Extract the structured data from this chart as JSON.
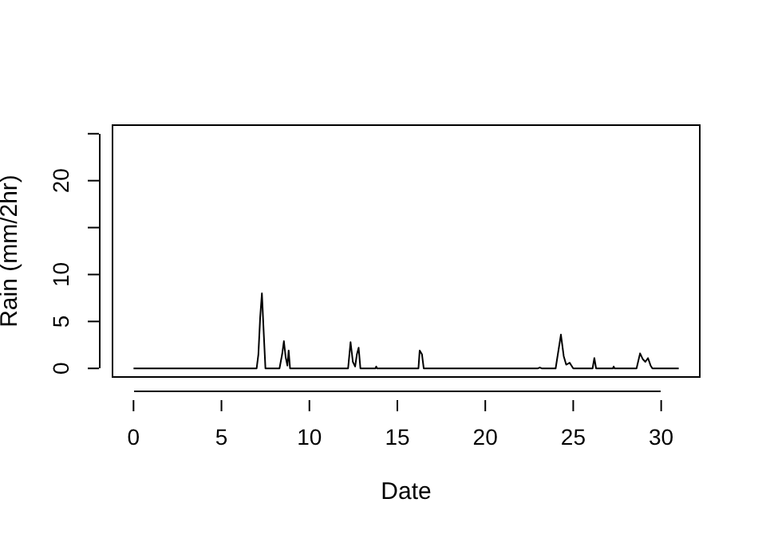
{
  "chart_data": {
    "type": "line",
    "xlabel": "Date",
    "ylabel": "Rain (mm/2hr)",
    "x": [
      0,
      7.0,
      7.1,
      7.2,
      7.3,
      7.4,
      7.5,
      8.3,
      8.45,
      8.55,
      8.65,
      8.75,
      8.82,
      8.9,
      12.2,
      12.34,
      12.47,
      12.6,
      12.7,
      12.8,
      12.9,
      13.75,
      13.8,
      13.85,
      16.2,
      16.27,
      16.4,
      16.5,
      23.0,
      23.1,
      23.2,
      24.0,
      24.3,
      24.46,
      24.6,
      24.8,
      25.0,
      26.1,
      26.2,
      26.3,
      27.25,
      27.3,
      27.35,
      28.6,
      28.8,
      28.95,
      29.1,
      29.25,
      29.4,
      29.5,
      31.0
    ],
    "series": [
      {
        "color": "#000000",
        "values": [
          0,
          0,
          1.5,
          5.4,
          8.0,
          3.9,
          0,
          0,
          1.5,
          2.9,
          1.2,
          0.3,
          1.9,
          0,
          0,
          2.8,
          0.7,
          0.2,
          1.5,
          2.2,
          0,
          0,
          0.2,
          0,
          0,
          1.9,
          1.5,
          0,
          0,
          0.1,
          0,
          0,
          3.6,
          1.3,
          0.4,
          0.6,
          0,
          0,
          1.1,
          0,
          0,
          0.2,
          0,
          0,
          1.6,
          1.0,
          0.7,
          1.1,
          0.3,
          0,
          0
        ]
      }
    ],
    "xlim": [
      -1.24,
      32.24
    ],
    "xticks": [
      0,
      5,
      10,
      15,
      20,
      25,
      30
    ],
    "ylim": [
      -1,
      26
    ],
    "yticks": [
      0,
      5,
      10,
      {
        "value": 15,
        "label": null
      },
      20,
      {
        "value": 25,
        "label": null
      }
    ],
    "grid": false,
    "legend": false,
    "marker": "none",
    "line_style": "solid"
  }
}
